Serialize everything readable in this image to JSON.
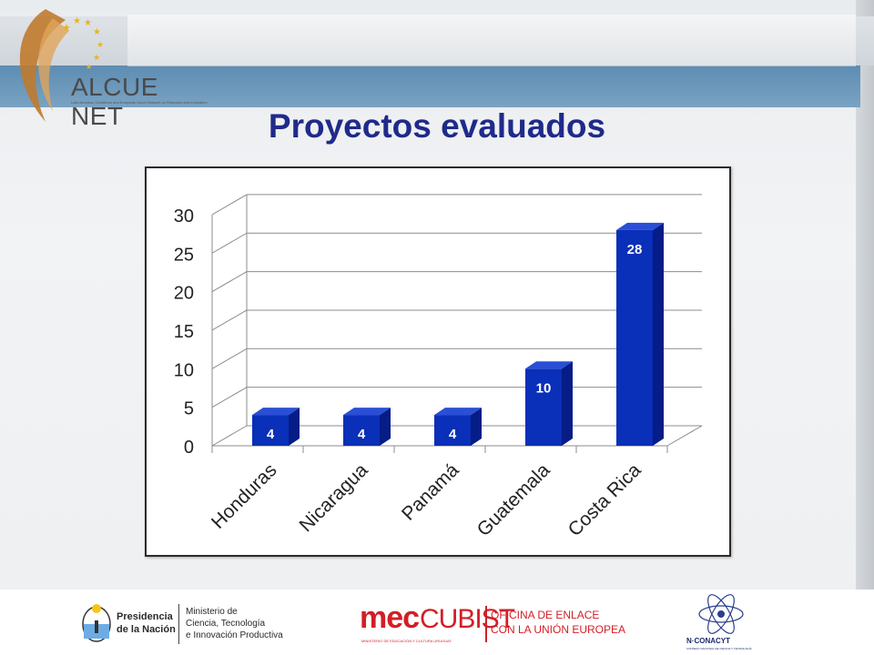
{
  "header": {
    "logo_text": "ALCUE NET",
    "logo_subtitle": "Latin America, Caribbean and European Union Network on Research and Innovation",
    "title": "Proyectos evaluados"
  },
  "chart_data": {
    "type": "bar",
    "style": "3d-column",
    "categories": [
      "Honduras",
      "Nicaragua",
      "Panamá",
      "Guatemala",
      "Costa Rica"
    ],
    "values": [
      4,
      4,
      4,
      10,
      28
    ],
    "data_labels": [
      "4",
      "4",
      "4",
      "10",
      "28"
    ],
    "title": "",
    "xlabel": "",
    "ylabel": "",
    "ylim": [
      0,
      30
    ],
    "yticks": [
      0,
      5,
      10,
      15,
      20,
      25,
      30
    ],
    "grid": true,
    "legend": "none",
    "bar_color": "#0a2fb8",
    "bar_side_color": "#061c86",
    "bar_top_color": "#2a4fd6",
    "label_color": "#ffffff"
  },
  "footer": {
    "presidencia_line1": "Presidencia",
    "presidencia_line2": "de la Nación",
    "ministerio_line1": "Ministerio de",
    "ministerio_line2": "Ciencia, Tecnología",
    "ministerio_line3": "e Innovación Productiva",
    "mec": "mec",
    "cubist": "CUBIST",
    "mec_sub": "MINISTERIO DE EDUCACIÓN Y CULTURA URUGUAY",
    "oficina_line1": "OFICINA DE ENLACE",
    "oficina_line2": "CON LA UNIÓN EUROPEA",
    "conacyt": "N·CONACYT",
    "conacyt_sub": "CONSEJO NACIONAL DE CIENCIA Y TECNOLOGÍA"
  },
  "colors": {
    "title": "#1f2a8a",
    "band": "#6a96b9",
    "mec_red": "#d31e26"
  }
}
